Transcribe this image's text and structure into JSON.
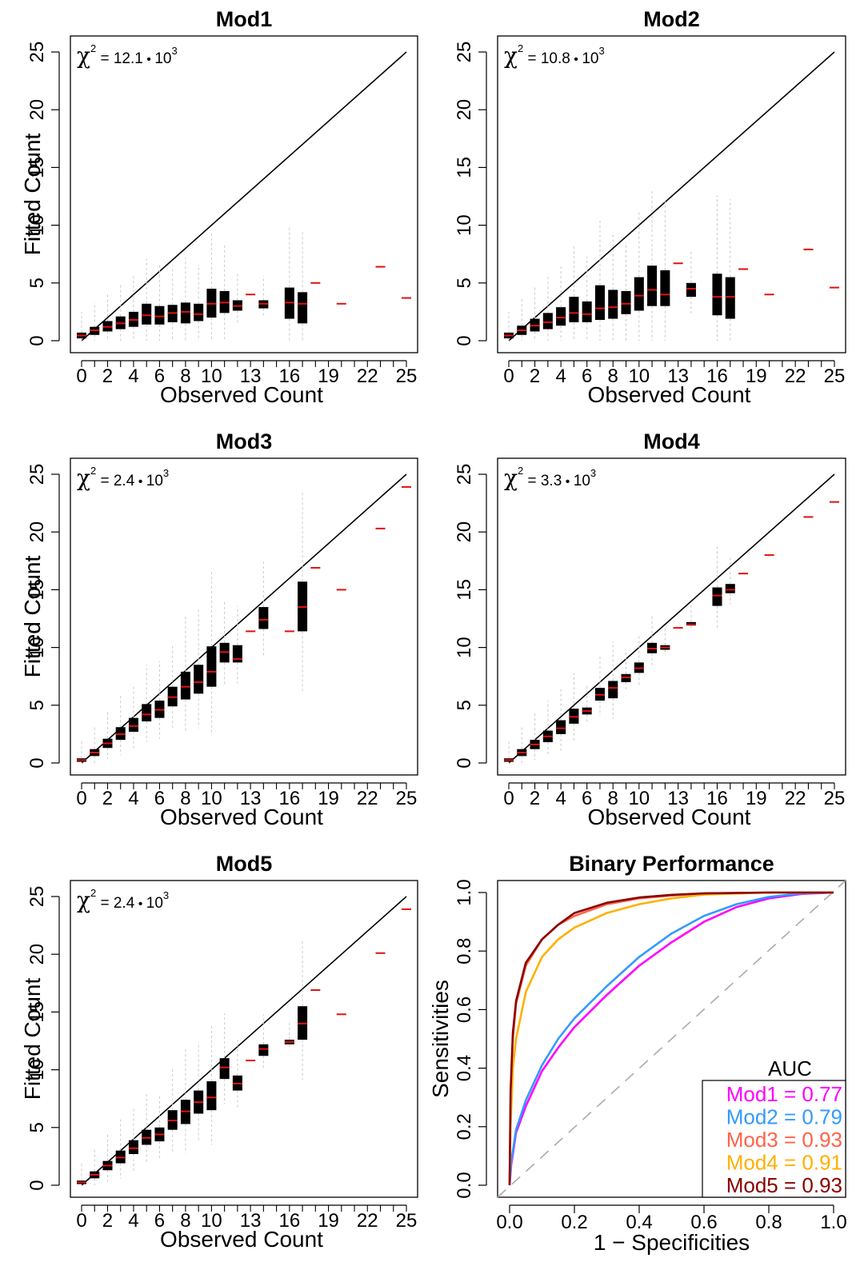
{
  "chart_data": [
    {
      "type": "boxplot",
      "title": "Mod1",
      "xlabel": "Observed Count",
      "ylabel": "Fitted Count",
      "stat_label": "χ² = 12.1·10³",
      "stat_parts": {
        "sym": "χ",
        "sup": "2",
        "mid": " = 12.1",
        "base": "10",
        "exp": "3"
      },
      "xlim": [
        0,
        25
      ],
      "ylim": [
        0,
        25
      ],
      "x_ticks": [
        0,
        2,
        4,
        6,
        8,
        10,
        13,
        16,
        19,
        22,
        25
      ],
      "y_ticks": [
        0,
        5,
        10,
        15,
        20,
        25
      ],
      "diagonal": true,
      "boxes": [
        {
          "x": 0,
          "q1": 0.2,
          "median": 0.45,
          "q3": 0.7
        },
        {
          "x": 1,
          "q1": 0.5,
          "median": 0.9,
          "q3": 1.2
        },
        {
          "x": 2,
          "q1": 0.8,
          "median": 1.2,
          "q3": 1.7
        },
        {
          "x": 3,
          "q1": 1.0,
          "median": 1.5,
          "q3": 2.1
        },
        {
          "x": 4,
          "q1": 1.2,
          "median": 1.8,
          "q3": 2.5
        },
        {
          "x": 5,
          "q1": 1.4,
          "median": 2.2,
          "q3": 3.2
        },
        {
          "x": 6,
          "q1": 1.4,
          "median": 2.1,
          "q3": 3.0
        },
        {
          "x": 7,
          "q1": 1.6,
          "median": 2.4,
          "q3": 3.1
        },
        {
          "x": 8,
          "q1": 1.5,
          "median": 2.5,
          "q3": 3.3
        },
        {
          "x": 9,
          "q1": 1.7,
          "median": 2.3,
          "q3": 3.2
        },
        {
          "x": 10,
          "q1": 2.0,
          "median": 3.2,
          "q3": 4.5
        },
        {
          "x": 11,
          "q1": 2.4,
          "median": 3.3,
          "q3": 4.3
        },
        {
          "x": 12,
          "q1": 2.6,
          "median": 3.0,
          "q3": 3.5
        },
        {
          "x": 13,
          "q1": 4.0,
          "median": 4.0,
          "q3": 4.0
        },
        {
          "x": 14,
          "q1": 2.8,
          "median": 3.2,
          "q3": 3.5
        },
        {
          "x": 16,
          "q1": 1.9,
          "median": 3.3,
          "q3": 4.6
        },
        {
          "x": 17,
          "q1": 1.5,
          "median": 3.2,
          "q3": 4.2
        },
        {
          "x": 18,
          "q1": 5.0,
          "median": 5.0,
          "q3": 5.0
        },
        {
          "x": 20,
          "q1": 3.2,
          "median": 3.2,
          "q3": 3.2
        },
        {
          "x": 23,
          "q1": 6.4,
          "median": 6.4,
          "q3": 6.4
        },
        {
          "x": 25,
          "q1": 3.7,
          "median": 3.7,
          "q3": 3.7
        }
      ]
    },
    {
      "type": "boxplot",
      "title": "Mod2",
      "xlabel": "Observed Count",
      "ylabel": "Fitted Count",
      "stat_label": "χ² = 10.8·10³",
      "stat_parts": {
        "sym": "χ",
        "sup": "2",
        "mid": " = 10.8",
        "base": "10",
        "exp": "3"
      },
      "xlim": [
        0,
        25
      ],
      "ylim": [
        0,
        25
      ],
      "x_ticks": [
        0,
        2,
        4,
        6,
        8,
        10,
        13,
        16,
        19,
        22,
        25
      ],
      "y_ticks": [
        0,
        5,
        10,
        15,
        20,
        25
      ],
      "diagonal": true,
      "boxes": [
        {
          "x": 0,
          "q1": 0.2,
          "median": 0.45,
          "q3": 0.7
        },
        {
          "x": 1,
          "q1": 0.5,
          "median": 0.9,
          "q3": 1.3
        },
        {
          "x": 2,
          "q1": 0.8,
          "median": 1.3,
          "q3": 1.9
        },
        {
          "x": 3,
          "q1": 1.0,
          "median": 1.6,
          "q3": 2.4
        },
        {
          "x": 4,
          "q1": 1.3,
          "median": 2.0,
          "q3": 2.9
        },
        {
          "x": 5,
          "q1": 1.6,
          "median": 2.4,
          "q3": 3.8
        },
        {
          "x": 6,
          "q1": 1.6,
          "median": 2.3,
          "q3": 3.4
        },
        {
          "x": 7,
          "q1": 1.8,
          "median": 2.8,
          "q3": 4.8
        },
        {
          "x": 8,
          "q1": 1.9,
          "median": 2.9,
          "q3": 4.4
        },
        {
          "x": 9,
          "q1": 2.3,
          "median": 3.2,
          "q3": 4.3
        },
        {
          "x": 10,
          "q1": 2.6,
          "median": 3.9,
          "q3": 5.5
        },
        {
          "x": 11,
          "q1": 3.0,
          "median": 4.4,
          "q3": 6.5
        },
        {
          "x": 12,
          "q1": 3.0,
          "median": 4.0,
          "q3": 6.1
        },
        {
          "x": 13,
          "q1": 6.7,
          "median": 6.7,
          "q3": 6.7
        },
        {
          "x": 14,
          "q1": 3.8,
          "median": 4.5,
          "q3": 5.0
        },
        {
          "x": 16,
          "q1": 2.2,
          "median": 3.8,
          "q3": 5.8
        },
        {
          "x": 17,
          "q1": 1.9,
          "median": 3.8,
          "q3": 5.5
        },
        {
          "x": 18,
          "q1": 6.2,
          "median": 6.2,
          "q3": 6.2
        },
        {
          "x": 20,
          "q1": 4.0,
          "median": 4.0,
          "q3": 4.0
        },
        {
          "x": 23,
          "q1": 7.9,
          "median": 7.9,
          "q3": 7.9
        },
        {
          "x": 25,
          "q1": 4.6,
          "median": 4.6,
          "q3": 4.6
        }
      ]
    },
    {
      "type": "boxplot",
      "title": "Mod3",
      "xlabel": "Observed Count",
      "ylabel": "Fitted Count",
      "stat_label": "χ² = 2.4·10³",
      "stat_parts": {
        "sym": "χ",
        "sup": "2",
        "mid": " = 2.4",
        "base": "10",
        "exp": "3"
      },
      "xlim": [
        0,
        25
      ],
      "ylim": [
        0,
        25
      ],
      "x_ticks": [
        0,
        2,
        4,
        6,
        8,
        10,
        13,
        16,
        19,
        22,
        25
      ],
      "y_ticks": [
        0,
        5,
        10,
        15,
        20,
        25
      ],
      "diagonal": true,
      "boxes": [
        {
          "x": 0,
          "q1": 0.1,
          "median": 0.25,
          "q3": 0.4
        },
        {
          "x": 1,
          "q1": 0.6,
          "median": 0.9,
          "q3": 1.2
        },
        {
          "x": 2,
          "q1": 1.3,
          "median": 1.7,
          "q3": 2.1
        },
        {
          "x": 3,
          "q1": 2.0,
          "median": 2.5,
          "q3": 3.1
        },
        {
          "x": 4,
          "q1": 2.7,
          "median": 3.2,
          "q3": 3.9
        },
        {
          "x": 5,
          "q1": 3.6,
          "median": 4.2,
          "q3": 5.1
        },
        {
          "x": 6,
          "q1": 3.9,
          "median": 4.6,
          "q3": 5.4
        },
        {
          "x": 7,
          "q1": 4.9,
          "median": 5.7,
          "q3": 6.6
        },
        {
          "x": 8,
          "q1": 5.5,
          "median": 6.6,
          "q3": 7.9
        },
        {
          "x": 9,
          "q1": 6.0,
          "median": 7.0,
          "q3": 8.5
        },
        {
          "x": 10,
          "q1": 6.6,
          "median": 7.9,
          "q3": 10.1
        },
        {
          "x": 11,
          "q1": 8.7,
          "median": 9.6,
          "q3": 10.4
        },
        {
          "x": 12,
          "q1": 8.7,
          "median": 9.0,
          "q3": 10.2
        },
        {
          "x": 13,
          "q1": 11.4,
          "median": 11.4,
          "q3": 11.4
        },
        {
          "x": 14,
          "q1": 11.6,
          "median": 12.4,
          "q3": 13.5
        },
        {
          "x": 16,
          "q1": 11.4,
          "median": 11.4,
          "q3": 11.4
        },
        {
          "x": 17,
          "q1": 11.4,
          "median": 13.5,
          "q3": 15.7
        },
        {
          "x": 18,
          "q1": 16.9,
          "median": 16.9,
          "q3": 16.9
        },
        {
          "x": 20,
          "q1": 15.0,
          "median": 15.0,
          "q3": 15.0
        },
        {
          "x": 23,
          "q1": 20.3,
          "median": 20.3,
          "q3": 20.3
        },
        {
          "x": 25,
          "q1": 23.9,
          "median": 23.9,
          "q3": 23.9
        }
      ]
    },
    {
      "type": "boxplot",
      "title": "Mod4",
      "xlabel": "Observed Count",
      "ylabel": "Fitted Count",
      "stat_label": "χ² = 3.3·10³",
      "stat_parts": {
        "sym": "χ",
        "sup": "2",
        "mid": " = 3.3",
        "base": "10",
        "exp": "3"
      },
      "xlim": [
        0,
        25
      ],
      "ylim": [
        0,
        25
      ],
      "x_ticks": [
        0,
        2,
        4,
        6,
        8,
        10,
        13,
        16,
        19,
        22,
        25
      ],
      "y_ticks": [
        0,
        5,
        10,
        15,
        20,
        25
      ],
      "diagonal": true,
      "boxes": [
        {
          "x": 0,
          "q1": 0.1,
          "median": 0.25,
          "q3": 0.4
        },
        {
          "x": 1,
          "q1": 0.6,
          "median": 0.9,
          "q3": 1.2
        },
        {
          "x": 2,
          "q1": 1.2,
          "median": 1.6,
          "q3": 2.0
        },
        {
          "x": 3,
          "q1": 1.8,
          "median": 2.3,
          "q3": 2.8
        },
        {
          "x": 4,
          "q1": 2.5,
          "median": 3.0,
          "q3": 3.7
        },
        {
          "x": 5,
          "q1": 3.4,
          "median": 4.0,
          "q3": 4.7
        },
        {
          "x": 6,
          "q1": 4.2,
          "median": 4.5,
          "q3": 4.8
        },
        {
          "x": 7,
          "q1": 5.4,
          "median": 5.9,
          "q3": 6.5
        },
        {
          "x": 8,
          "q1": 5.6,
          "median": 6.5,
          "q3": 7.1
        },
        {
          "x": 9,
          "q1": 7.0,
          "median": 7.4,
          "q3": 7.7
        },
        {
          "x": 10,
          "q1": 7.8,
          "median": 8.2,
          "q3": 8.7
        },
        {
          "x": 11,
          "q1": 9.5,
          "median": 9.9,
          "q3": 10.4
        },
        {
          "x": 12,
          "q1": 9.8,
          "median": 10.0,
          "q3": 10.2
        },
        {
          "x": 13,
          "q1": 11.7,
          "median": 11.7,
          "q3": 11.7
        },
        {
          "x": 14,
          "q1": 11.9,
          "median": 12.0,
          "q3": 12.2
        },
        {
          "x": 16,
          "q1": 13.6,
          "median": 14.5,
          "q3": 15.2
        },
        {
          "x": 17,
          "q1": 14.7,
          "median": 15.0,
          "q3": 15.5
        },
        {
          "x": 18,
          "q1": 16.4,
          "median": 16.4,
          "q3": 16.4
        },
        {
          "x": 20,
          "q1": 18.0,
          "median": 18.0,
          "q3": 18.0
        },
        {
          "x": 23,
          "q1": 21.3,
          "median": 21.3,
          "q3": 21.3
        },
        {
          "x": 25,
          "q1": 22.6,
          "median": 22.6,
          "q3": 22.6
        }
      ]
    },
    {
      "type": "boxplot",
      "title": "Mod5",
      "xlabel": "Observed Count",
      "ylabel": "Fitted Count",
      "stat_label": "χ² = 2.4·10³",
      "stat_parts": {
        "sym": "χ",
        "sup": "2",
        "mid": " = 2.4",
        "base": "10",
        "exp": "3"
      },
      "xlim": [
        0,
        25
      ],
      "ylim": [
        0,
        25
      ],
      "x_ticks": [
        0,
        2,
        4,
        6,
        8,
        10,
        13,
        16,
        19,
        22,
        25
      ],
      "y_ticks": [
        0,
        5,
        10,
        15,
        20,
        25
      ],
      "diagonal": true,
      "boxes": [
        {
          "x": 0,
          "q1": 0.1,
          "median": 0.25,
          "q3": 0.4
        },
        {
          "x": 1,
          "q1": 0.6,
          "median": 0.9,
          "q3": 1.2
        },
        {
          "x": 2,
          "q1": 1.3,
          "median": 1.7,
          "q3": 2.1
        },
        {
          "x": 3,
          "q1": 1.9,
          "median": 2.4,
          "q3": 3.0
        },
        {
          "x": 4,
          "q1": 2.7,
          "median": 3.2,
          "q3": 3.9
        },
        {
          "x": 5,
          "q1": 3.5,
          "median": 4.1,
          "q3": 4.8
        },
        {
          "x": 6,
          "q1": 3.8,
          "median": 4.4,
          "q3": 5.0
        },
        {
          "x": 7,
          "q1": 4.8,
          "median": 5.6,
          "q3": 6.5
        },
        {
          "x": 8,
          "q1": 5.3,
          "median": 6.4,
          "q3": 7.4
        },
        {
          "x": 9,
          "q1": 6.2,
          "median": 7.2,
          "q3": 8.2
        },
        {
          "x": 10,
          "q1": 6.5,
          "median": 7.6,
          "q3": 9.0
        },
        {
          "x": 11,
          "q1": 9.2,
          "median": 10.2,
          "q3": 11.0
        },
        {
          "x": 12,
          "q1": 8.2,
          "median": 8.8,
          "q3": 9.5
        },
        {
          "x": 13,
          "q1": 10.8,
          "median": 10.8,
          "q3": 10.8
        },
        {
          "x": 14,
          "q1": 11.2,
          "median": 11.8,
          "q3": 12.2
        },
        {
          "x": 16,
          "q1": 12.2,
          "median": 12.4,
          "q3": 12.6
        },
        {
          "x": 17,
          "q1": 12.6,
          "median": 14.0,
          "q3": 15.5
        },
        {
          "x": 18,
          "q1": 16.9,
          "median": 16.9,
          "q3": 16.9
        },
        {
          "x": 20,
          "q1": 14.8,
          "median": 14.8,
          "q3": 14.8
        },
        {
          "x": 23,
          "q1": 20.1,
          "median": 20.1,
          "q3": 20.1
        },
        {
          "x": 25,
          "q1": 23.9,
          "median": 23.9,
          "q3": 23.9
        }
      ]
    },
    {
      "type": "line",
      "title": "Binary Performance",
      "xlabel": "1 − Specificities",
      "ylabel": "Sensitivities",
      "xlim": [
        0,
        1
      ],
      "ylim": [
        0,
        1
      ],
      "x_ticks": [
        "0.0",
        "0.2",
        "0.4",
        "0.6",
        "0.8",
        "1.0"
      ],
      "y_ticks": [
        "0.0",
        "0.2",
        "0.4",
        "0.6",
        "0.8",
        "1.0"
      ],
      "reference_line": "diagonal-dashed",
      "legend": {
        "title": "AUC",
        "placement": "bottom-right"
      },
      "series": [
        {
          "name": "Mod1 = 0.77",
          "color": "#ff00ff",
          "auc": 0.77,
          "x": [
            0,
            0.005,
            0.02,
            0.05,
            0.1,
            0.15,
            0.2,
            0.3,
            0.4,
            0.5,
            0.6,
            0.7,
            0.8,
            0.9,
            1.0
          ],
          "y": [
            0,
            0.07,
            0.18,
            0.27,
            0.39,
            0.47,
            0.54,
            0.65,
            0.75,
            0.83,
            0.9,
            0.95,
            0.98,
            0.995,
            1.0
          ]
        },
        {
          "name": "Mod2 = 0.79",
          "color": "#3399ff",
          "auc": 0.79,
          "x": [
            0,
            0.005,
            0.02,
            0.05,
            0.1,
            0.15,
            0.2,
            0.3,
            0.4,
            0.5,
            0.6,
            0.7,
            0.8,
            0.9,
            1.0
          ],
          "y": [
            0,
            0.08,
            0.19,
            0.29,
            0.41,
            0.5,
            0.57,
            0.68,
            0.78,
            0.86,
            0.92,
            0.96,
            0.985,
            0.997,
            1.0
          ]
        },
        {
          "name": "Mod3 = 0.93",
          "color": "#ff6347",
          "auc": 0.93,
          "x": [
            0,
            0.003,
            0.01,
            0.02,
            0.05,
            0.1,
            0.15,
            0.2,
            0.3,
            0.4,
            0.5,
            0.6,
            0.8,
            1.0
          ],
          "y": [
            0,
            0.3,
            0.5,
            0.62,
            0.75,
            0.84,
            0.89,
            0.92,
            0.96,
            0.98,
            0.99,
            0.997,
            1.0,
            1.0
          ]
        },
        {
          "name": "Mod4 = 0.91",
          "color": "#ffb000",
          "auc": 0.91,
          "x": [
            0,
            0.003,
            0.01,
            0.02,
            0.05,
            0.1,
            0.15,
            0.2,
            0.3,
            0.4,
            0.5,
            0.6,
            0.8,
            1.0
          ],
          "y": [
            0,
            0.2,
            0.4,
            0.5,
            0.66,
            0.78,
            0.84,
            0.88,
            0.93,
            0.96,
            0.98,
            0.993,
            1.0,
            1.0
          ]
        },
        {
          "name": "Mod5 = 0.93",
          "color": "#8b0000",
          "auc": 0.93,
          "x": [
            0,
            0.003,
            0.01,
            0.02,
            0.05,
            0.1,
            0.15,
            0.2,
            0.3,
            0.4,
            0.5,
            0.6,
            0.8,
            1.0
          ],
          "y": [
            0,
            0.32,
            0.52,
            0.63,
            0.76,
            0.84,
            0.89,
            0.93,
            0.965,
            0.983,
            0.992,
            0.997,
            1.0,
            1.0
          ]
        }
      ]
    }
  ]
}
